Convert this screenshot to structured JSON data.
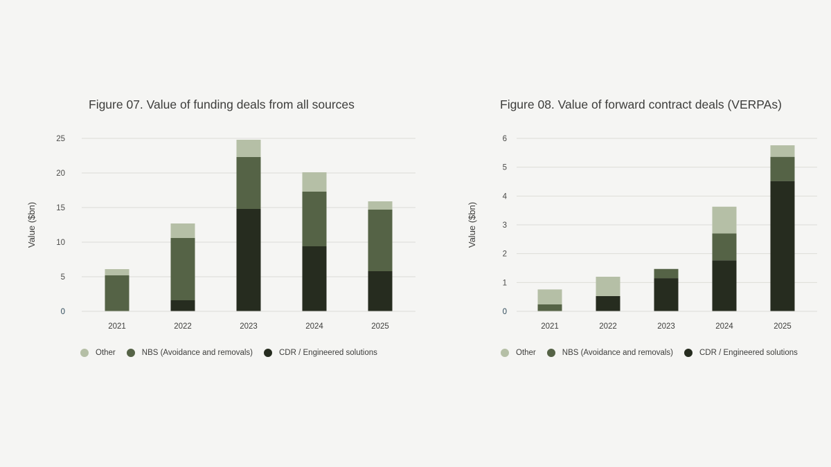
{
  "colors": {
    "other": "#b5bfa6",
    "nbs": "#556346",
    "cdr": "#262c1f",
    "grid": "#dcdcd7",
    "tick_zero": "#2f4a5a"
  },
  "chart_data": [
    {
      "type": "bar",
      "stacked": true,
      "title": "Figure 07. Value of funding deals from all sources",
      "xlabel": "",
      "ylabel": "Value ($bn)",
      "ylim": [
        0,
        25
      ],
      "yticks": [
        "0",
        "5",
        "10",
        "15",
        "20",
        "25"
      ],
      "categories": [
        "2021",
        "2022",
        "2023",
        "2024",
        "2025"
      ],
      "legend_position": "bottom-left",
      "series": [
        {
          "name": "CDR / Engineered solutions",
          "key": "cdr",
          "values": [
            0,
            1.6,
            14.8,
            9.4,
            5.8
          ]
        },
        {
          "name": "NBS (Avoidance and removals)",
          "key": "nbs",
          "values": [
            5.2,
            9.0,
            7.5,
            7.9,
            8.9
          ]
        },
        {
          "name": "Other",
          "key": "other",
          "values": [
            0.9,
            2.1,
            2.5,
            2.8,
            1.2
          ]
        }
      ],
      "legend": [
        "Other",
        "NBS (Avoidance and removals)",
        "CDR / Engineered solutions"
      ]
    },
    {
      "type": "bar",
      "stacked": true,
      "title": "Figure 08. Value of forward contract deals (VERPAs)",
      "xlabel": "",
      "ylabel": "Value ($bn)",
      "ylim": [
        0,
        6
      ],
      "yticks": [
        "0",
        "1",
        "2",
        "3",
        "4",
        "5",
        "6"
      ],
      "categories": [
        "2021",
        "2022",
        "2023",
        "2024",
        "2025"
      ],
      "legend_position": "bottom-left",
      "series": [
        {
          "name": "CDR / Engineered solutions",
          "key": "cdr",
          "values": [
            0,
            0.53,
            1.15,
            1.77,
            4.52
          ]
        },
        {
          "name": "NBS (Avoidance and removals)",
          "key": "nbs",
          "values": [
            0.24,
            0,
            0.32,
            0.93,
            0.84
          ]
        },
        {
          "name": "Other",
          "key": "other",
          "values": [
            0.52,
            0.67,
            0,
            0.93,
            0.4
          ]
        }
      ],
      "legend": [
        "Other",
        "NBS (Avoidance and removals)",
        "CDR / Engineered solutions"
      ]
    }
  ]
}
